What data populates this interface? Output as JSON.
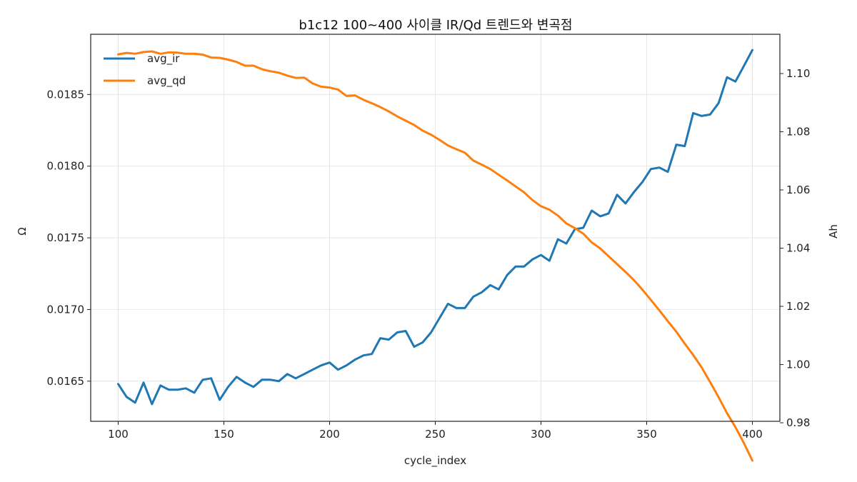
{
  "chart_data": {
    "type": "line",
    "title": "b1c12 100~400 사이클 IR/Qd 트렌드와 변곡점",
    "xlabel": "cycle_index",
    "ylabel_left": "Ω",
    "ylabel_right": "Ah",
    "xlim": [
      87,
      413
    ],
    "ylim_left": [
      0.01622,
      0.01892
    ],
    "ylim_right": [
      0.9805,
      1.1135
    ],
    "xticks": [
      100,
      150,
      200,
      250,
      300,
      350,
      400
    ],
    "yticks_left": [
      "0.0165",
      "0.0170",
      "0.0175",
      "0.0180",
      "0.0185"
    ],
    "yticks_right": [
      "0.98",
      "1.00",
      "1.02",
      "1.04",
      "1.06",
      "1.08",
      "1.10"
    ],
    "grid": true,
    "legend_position": "top-left",
    "series": [
      {
        "name": "avg_ir",
        "axis": "left",
        "color": "#1f77b4",
        "x": [
          100,
          104,
          108,
          112,
          116,
          120,
          124,
          128,
          132,
          136,
          140,
          144,
          148,
          152,
          156,
          160,
          164,
          168,
          172,
          176,
          180,
          184,
          188,
          192,
          196,
          200,
          204,
          208,
          212,
          216,
          220,
          224,
          228,
          232,
          236,
          240,
          244,
          248,
          252,
          256,
          260,
          264,
          268,
          272,
          276,
          280,
          284,
          288,
          292,
          296,
          300,
          304,
          308,
          312,
          316,
          320,
          324,
          328,
          332,
          336,
          340,
          344,
          348,
          352,
          356,
          360,
          364,
          368,
          372,
          376,
          380,
          384,
          388,
          392,
          396,
          400
        ],
        "values": [
          0.01648,
          0.01639,
          0.01635,
          0.01649,
          0.01634,
          0.01647,
          0.01644,
          0.01644,
          0.01645,
          0.01642,
          0.01651,
          0.01652,
          0.01637,
          0.01646,
          0.01653,
          0.01649,
          0.01646,
          0.01651,
          0.01651,
          0.0165,
          0.01655,
          0.01652,
          0.01655,
          0.01658,
          0.01661,
          0.01663,
          0.01658,
          0.01661,
          0.01665,
          0.01668,
          0.01669,
          0.0168,
          0.01679,
          0.01684,
          0.01685,
          0.01674,
          0.01677,
          0.01684,
          0.01694,
          0.01704,
          0.01701,
          0.01701,
          0.01709,
          0.01712,
          0.01717,
          0.01714,
          0.01724,
          0.0173,
          0.0173,
          0.01735,
          0.01738,
          0.01734,
          0.01749,
          0.01746,
          0.01756,
          0.01757,
          0.01769,
          0.01765,
          0.01767,
          0.0178,
          0.01774,
          0.01782,
          0.01789,
          0.01798,
          0.01799,
          0.01796,
          0.01815,
          0.01814,
          0.01837,
          0.01835,
          0.01836,
          0.01844,
          0.01862,
          0.01859,
          0.0187,
          0.01881
        ]
      },
      {
        "name": "avg_qd",
        "axis": "right",
        "color": "#ff7f0e",
        "x": [
          100,
          104,
          108,
          112,
          116,
          120,
          124,
          128,
          132,
          136,
          140,
          144,
          148,
          152,
          156,
          160,
          164,
          168,
          172,
          176,
          180,
          184,
          188,
          192,
          196,
          200,
          204,
          208,
          212,
          216,
          220,
          224,
          228,
          232,
          236,
          240,
          244,
          248,
          252,
          256,
          260,
          264,
          268,
          272,
          276,
          280,
          284,
          288,
          292,
          296,
          300,
          304,
          308,
          312,
          316,
          320,
          324,
          328,
          332,
          336,
          340,
          344,
          348,
          352,
          356,
          360,
          364,
          368,
          372,
          376,
          380,
          384,
          388,
          392,
          396,
          400
        ],
        "values": [
          1.1066,
          1.1071,
          1.1068,
          1.1074,
          1.1076,
          1.1068,
          1.1073,
          1.1072,
          1.1068,
          1.1068,
          1.1065,
          1.1055,
          1.1054,
          1.1048,
          1.104,
          1.1027,
          1.1027,
          1.1015,
          1.1008,
          1.1003,
          1.0993,
          1.0985,
          1.0986,
          1.0966,
          1.0955,
          1.0952,
          1.0945,
          1.0923,
          1.0925,
          1.091,
          1.0898,
          1.0885,
          1.087,
          1.0853,
          1.0838,
          1.0823,
          1.0804,
          1.079,
          1.0772,
          1.0753,
          1.074,
          1.0728,
          1.0701,
          1.0687,
          1.0672,
          1.0652,
          1.0633,
          1.0612,
          1.0592,
          1.0565,
          1.0544,
          1.0532,
          1.0512,
          1.0485,
          1.0469,
          1.045,
          1.042,
          1.0399,
          1.0372,
          1.0345,
          1.0318,
          1.029,
          1.0257,
          1.0222,
          1.0186,
          1.0149,
          1.0113,
          1.0072,
          1.0033,
          0.999,
          0.994,
          0.9888,
          0.9833,
          0.9785,
          0.973,
          0.967
        ]
      }
    ]
  }
}
